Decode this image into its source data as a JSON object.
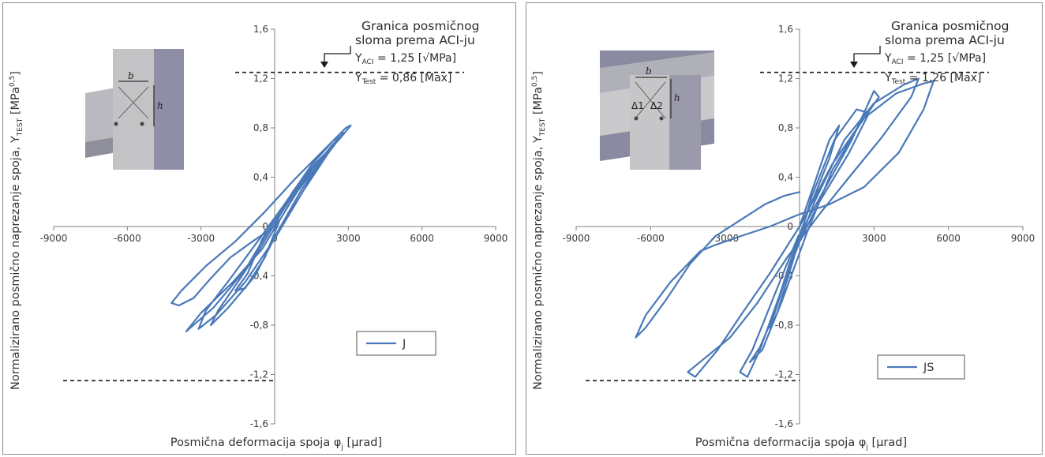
{
  "chart_data": [
    {
      "type": "line",
      "panel": "left",
      "xlabel_main": "Posmična deformacija spoja φ",
      "xlabel_sub": "j",
      "xlabel_unit": " [μrad]",
      "ylabel_main": "Normalizirano posmično naprezanje spoja, Y",
      "ylabel_sub": "TEST",
      "ylabel_unit": " [MPa",
      "ylabel_sup": "0,5",
      "ylabel_close": "]",
      "xlim": [
        -9000,
        9000
      ],
      "ylim": [
        -1.6,
        1.6
      ],
      "x_ticks": [
        {
          "v": -9000,
          "label": "-9000"
        },
        {
          "v": -6000,
          "label": "-6000"
        },
        {
          "v": -3000,
          "label": "-3000"
        },
        {
          "v": 0,
          "label": "0"
        },
        {
          "v": 3000,
          "label": "3000"
        },
        {
          "v": 6000,
          "label": "6000"
        },
        {
          "v": 9000,
          "label": "9000"
        }
      ],
      "y_ticks": [
        {
          "v": 1.6,
          "label": "1,6"
        },
        {
          "v": 1.2,
          "label": "1,2"
        },
        {
          "v": 0.8,
          "label": "0,8"
        },
        {
          "v": 0.4,
          "label": "0,4"
        },
        {
          "v": 0,
          "label": "0"
        },
        {
          "v": -0.4,
          "label": "-0,4"
        },
        {
          "v": -0.8,
          "label": "-0,8"
        },
        {
          "v": -1.2,
          "label": "-1,2"
        },
        {
          "v": -1.6,
          "label": "-1,6"
        }
      ],
      "annotation": {
        "line1": "Granica posmičnog",
        "line2": "sloma prema ACI-ju",
        "aci_main": "Y",
        "aci_sub": "ACI",
        "aci_value": " = 1,25 [√MPa]",
        "test_main": "Y",
        "test_sub": "Test",
        "test_value": " = 0,86 [Max]"
      },
      "reference_lines": {
        "upper": 1.25,
        "lower": -1.25
      },
      "series": [
        {
          "name": "J",
          "color": "#4a79b8",
          "points": [
            [
              0,
              0
            ],
            [
              400,
              0.18
            ],
            [
              900,
              0.3
            ],
            [
              1500,
              0.45
            ],
            [
              1600,
              0.5
            ],
            [
              800,
              0.3
            ],
            [
              0,
              0.05
            ],
            [
              -500,
              -0.1
            ],
            [
              -1100,
              -0.38
            ],
            [
              -1600,
              -0.52
            ],
            [
              -1200,
              -0.5
            ],
            [
              -400,
              -0.25
            ],
            [
              200,
              0.05
            ],
            [
              900,
              0.28
            ],
            [
              1700,
              0.48
            ],
            [
              2100,
              0.6
            ],
            [
              1300,
              0.42
            ],
            [
              300,
              0.12
            ],
            [
              -600,
              -0.18
            ],
            [
              -1500,
              -0.45
            ],
            [
              -2300,
              -0.68
            ],
            [
              -2600,
              -0.8
            ],
            [
              -1900,
              -0.66
            ],
            [
              -800,
              -0.4
            ],
            [
              100,
              -0.05
            ],
            [
              1100,
              0.3
            ],
            [
              2000,
              0.55
            ],
            [
              2600,
              0.72
            ],
            [
              2400,
              0.7
            ],
            [
              1500,
              0.5
            ],
            [
              400,
              0.18
            ],
            [
              -800,
              -0.15
            ],
            [
              -1800,
              -0.42
            ],
            [
              -2800,
              -0.68
            ],
            [
              -3100,
              -0.83
            ],
            [
              -2400,
              -0.72
            ],
            [
              -1200,
              -0.45
            ],
            [
              0,
              -0.1
            ],
            [
              1200,
              0.3
            ],
            [
              2200,
              0.6
            ],
            [
              2800,
              0.76
            ],
            [
              2300,
              0.65
            ],
            [
              1200,
              0.38
            ],
            [
              0,
              0.05
            ],
            [
              -1200,
              -0.35
            ],
            [
              -2500,
              -0.66
            ],
            [
              -3600,
              -0.85
            ],
            [
              -3000,
              -0.7
            ],
            [
              -1700,
              -0.45
            ],
            [
              -500,
              -0.18
            ],
            [
              500,
              0.15
            ],
            [
              1600,
              0.5
            ],
            [
              2600,
              0.7
            ],
            [
              3100,
              0.82
            ],
            [
              2900,
              0.8
            ],
            [
              2000,
              0.62
            ],
            [
              800,
              0.38
            ],
            [
              -400,
              0.12
            ],
            [
              -1600,
              -0.12
            ],
            [
              -2800,
              -0.32
            ],
            [
              -3800,
              -0.52
            ],
            [
              -4200,
              -0.62
            ],
            [
              -3900,
              -0.64
            ],
            [
              -3300,
              -0.58
            ],
            [
              -2600,
              -0.42
            ],
            [
              -1800,
              -0.25
            ],
            [
              -900,
              -0.12
            ],
            [
              0,
              0
            ]
          ]
        }
      ]
    },
    {
      "type": "line",
      "panel": "right",
      "xlabel_main": "Posmična deformacija spoja φ",
      "xlabel_sub": "j",
      "xlabel_unit": " [μrad]",
      "ylabel_main": "Normalizirano posmično naprezanje spoja, Y",
      "ylabel_sub": "TEST",
      "ylabel_unit": " [MPa",
      "ylabel_sup": "0,5",
      "ylabel_close": "]",
      "xlim": [
        -9000,
        9000
      ],
      "ylim": [
        -1.6,
        1.6
      ],
      "x_ticks": [
        {
          "v": -9000,
          "label": "-9000"
        },
        {
          "v": -6000,
          "label": "-6000"
        },
        {
          "v": -3000,
          "label": "-3000"
        },
        {
          "v": 0,
          "label": "0"
        },
        {
          "v": 3000,
          "label": "3000"
        },
        {
          "v": 6000,
          "label": "6000"
        },
        {
          "v": 9000,
          "label": "9000"
        }
      ],
      "y_ticks": [
        {
          "v": 1.6,
          "label": "1,6"
        },
        {
          "v": 1.2,
          "label": "1,2"
        },
        {
          "v": 0.8,
          "label": "0,8"
        },
        {
          "v": 0.4,
          "label": "0,4"
        },
        {
          "v": 0,
          "label": "0"
        },
        {
          "v": -0.4,
          "label": "-0,4"
        },
        {
          "v": -0.8,
          "label": "-0,8"
        },
        {
          "v": -1.2,
          "label": "-1,2"
        },
        {
          "v": -1.6,
          "label": "-1,6"
        }
      ],
      "annotation": {
        "line1": "Granica posmičnog",
        "line2": "sloma prema ACI-ju",
        "aci_main": "Y",
        "aci_sub": "ACI",
        "aci_value": " = 1,25 [√MPa]",
        "test_main": "Y",
        "test_sub": "Test",
        "test_value": " = 1,26 [Max]"
      },
      "reference_lines": {
        "upper": 1.25,
        "lower": -1.25
      },
      "series": [
        {
          "name": "JS",
          "color": "#4a79b8",
          "points": [
            [
              0,
              0
            ],
            [
              600,
              0.35
            ],
            [
              1200,
              0.7
            ],
            [
              1600,
              0.82
            ],
            [
              1200,
              0.55
            ],
            [
              300,
              0.1
            ],
            [
              -400,
              -0.3
            ],
            [
              -900,
              -0.62
            ],
            [
              -1200,
              -0.82
            ],
            [
              -900,
              -0.7
            ],
            [
              -300,
              -0.3
            ],
            [
              500,
              0.25
            ],
            [
              1400,
              0.7
            ],
            [
              2300,
              0.95
            ],
            [
              2800,
              0.92
            ],
            [
              2000,
              0.6
            ],
            [
              800,
              0.2
            ],
            [
              -200,
              -0.2
            ],
            [
              -1000,
              -0.7
            ],
            [
              -1600,
              -0.98
            ],
            [
              -2000,
              -1.1
            ],
            [
              -1500,
              -1.0
            ],
            [
              -700,
              -0.6
            ],
            [
              300,
              -0.05
            ],
            [
              1300,
              0.45
            ],
            [
              2400,
              0.82
            ],
            [
              3200,
              1.05
            ],
            [
              3000,
              1.1
            ],
            [
              2100,
              0.7
            ],
            [
              1000,
              0.3
            ],
            [
              -100,
              -0.1
            ],
            [
              -1000,
              -0.55
            ],
            [
              -1900,
              -1.0
            ],
            [
              -2400,
              -1.18
            ],
            [
              -2100,
              -1.22
            ],
            [
              -1600,
              -1.0
            ],
            [
              -700,
              -0.5
            ],
            [
              600,
              0.2
            ],
            [
              1800,
              0.7
            ],
            [
              3000,
              1.0
            ],
            [
              4200,
              1.15
            ],
            [
              4800,
              1.2
            ],
            [
              4500,
              1.05
            ],
            [
              3300,
              0.72
            ],
            [
              2000,
              0.4
            ],
            [
              800,
              0.1
            ],
            [
              -500,
              -0.25
            ],
            [
              -1700,
              -0.62
            ],
            [
              -2800,
              -0.9
            ],
            [
              -3900,
              -1.08
            ],
            [
              -4500,
              -1.18
            ],
            [
              -4200,
              -1.22
            ],
            [
              -3300,
              -1.0
            ],
            [
              -2300,
              -0.7
            ],
            [
              -1200,
              -0.38
            ],
            [
              0,
              0
            ],
            [
              1300,
              0.5
            ],
            [
              2600,
              0.88
            ],
            [
              3900,
              1.08
            ],
            [
              5000,
              1.16
            ],
            [
              5400,
              1.18
            ],
            [
              5000,
              0.95
            ],
            [
              4000,
              0.6
            ],
            [
              2600,
              0.32
            ],
            [
              1200,
              0.18
            ],
            [
              0,
              0.1
            ],
            [
              -1200,
              0
            ],
            [
              -2400,
              -0.08
            ],
            [
              -3400,
              -0.15
            ],
            [
              -4000,
              -0.2
            ],
            [
              -5200,
              -0.45
            ],
            [
              -6200,
              -0.72
            ],
            [
              -6600,
              -0.9
            ],
            [
              -6200,
              -0.82
            ],
            [
              -5400,
              -0.6
            ],
            [
              -4400,
              -0.3
            ],
            [
              -3400,
              -0.08
            ],
            [
              -2400,
              0.05
            ],
            [
              -1400,
              0.18
            ],
            [
              -600,
              0.25
            ],
            [
              0,
              0.28
            ]
          ]
        }
      ]
    }
  ]
}
